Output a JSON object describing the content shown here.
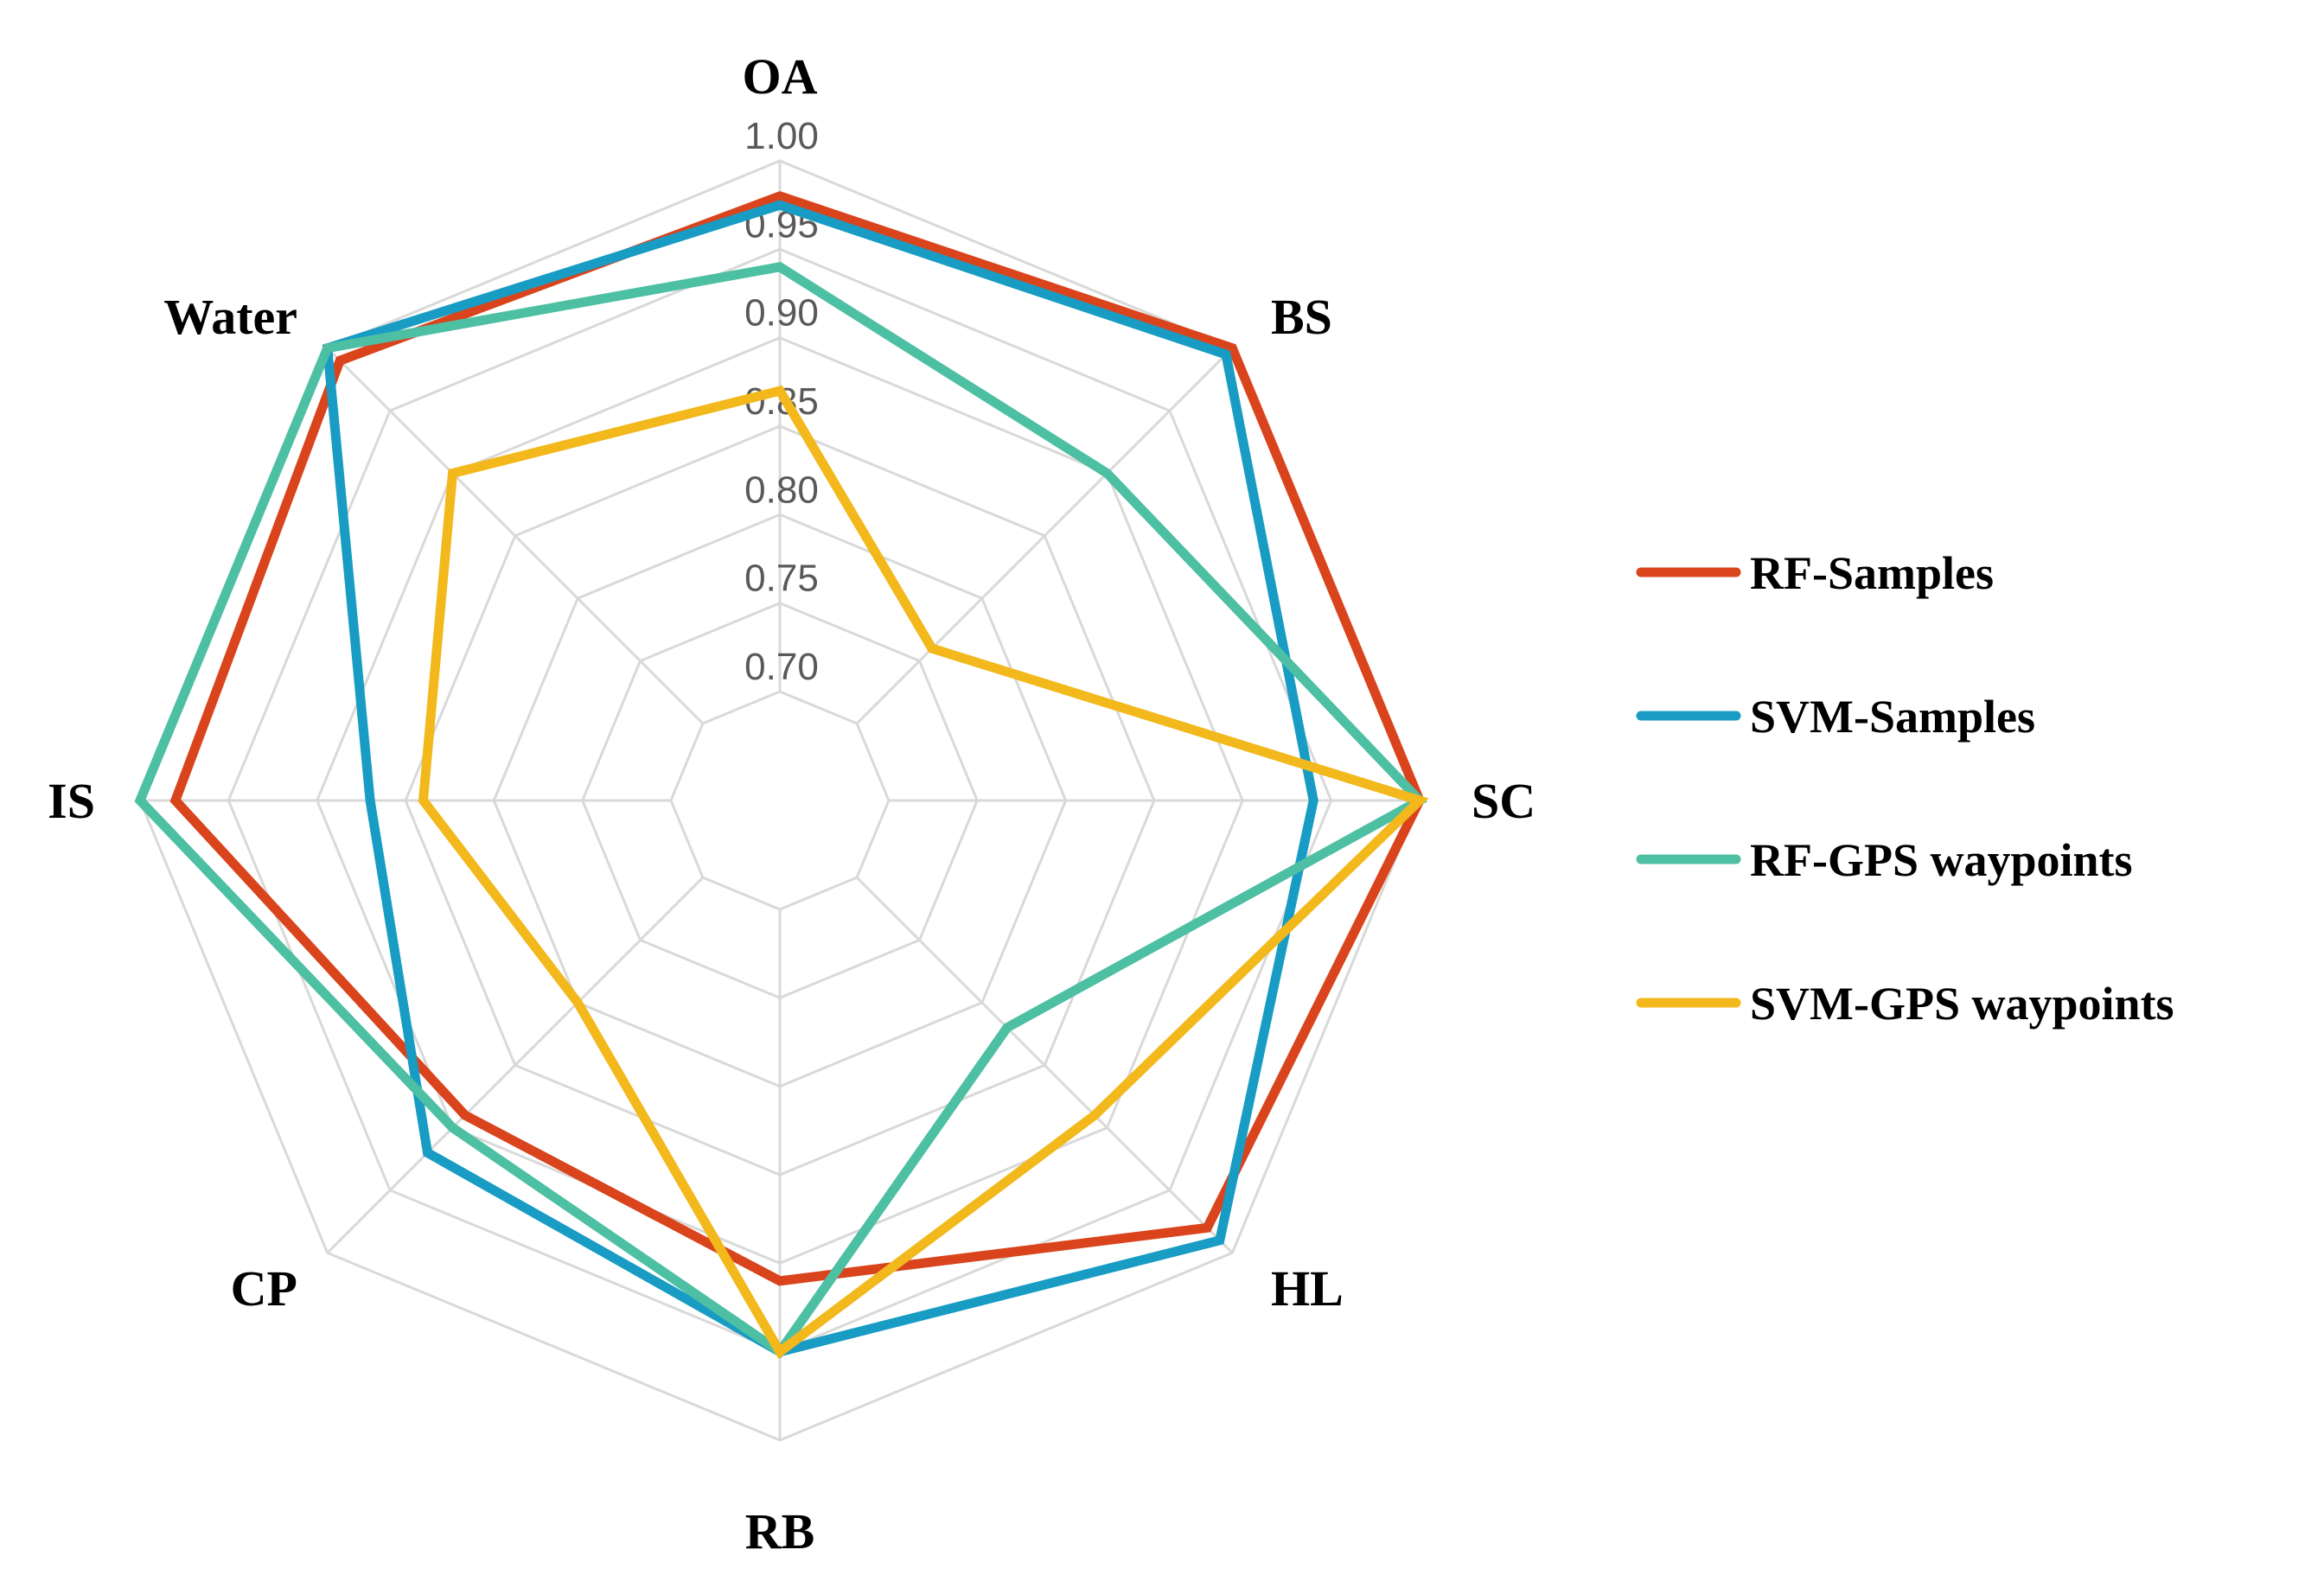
{
  "chart_data": {
    "type": "radar",
    "title": "",
    "axes": [
      "OA",
      "BS",
      "SC",
      "HL",
      "RB",
      "CP",
      "IS",
      "Water"
    ],
    "rlim": [
      0.7,
      1.0
    ],
    "ticks": [
      0.7,
      0.75,
      0.8,
      0.85,
      0.9,
      0.95,
      1.0
    ],
    "tick_labels": [
      "0.70",
      "0.75",
      "0.80",
      "0.85",
      "0.90",
      "0.95",
      "1.00"
    ],
    "grid": true,
    "legend_position": "right",
    "series": [
      {
        "name": "RF-Samples",
        "color": "#d9441c",
        "values": [
          0.98,
          1.0,
          1.0,
          0.98,
          0.91,
          0.89,
          0.98,
          0.99
        ]
      },
      {
        "name": "SVM-Samples",
        "color": "#189cc4",
        "values": [
          0.975,
          0.995,
          0.94,
          0.99,
          0.95,
          0.92,
          0.87,
          1.0
        ]
      },
      {
        "name": "RF-GPS waypoints",
        "color": "#4dbfa3",
        "values": [
          0.94,
          0.9,
          1.0,
          0.82,
          0.95,
          0.9,
          1.0,
          1.0
        ]
      },
      {
        "name": "SVM-GPS waypoints",
        "color": "#f2b81c",
        "values": [
          0.87,
          0.76,
          1.0,
          0.89,
          0.95,
          0.8,
          0.84,
          0.9
        ]
      }
    ]
  }
}
